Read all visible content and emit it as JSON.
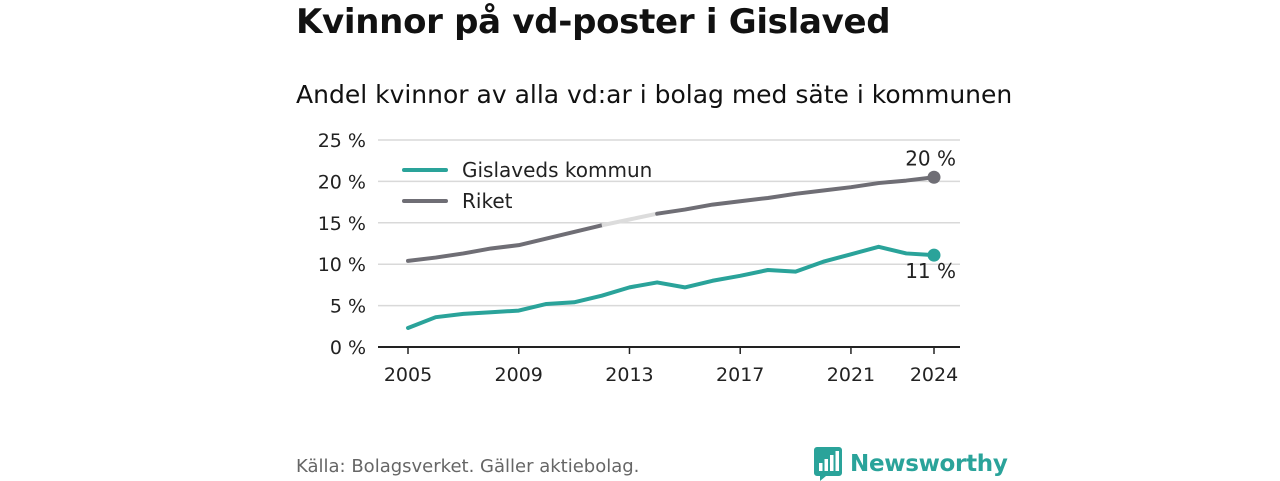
{
  "title": "Kvinnor på vd-poster i Gislaved",
  "subtitle": "Andel kvinnor av alla vd:ar i bolag med säte i kommunen",
  "source": "Källa: Bolagsverket. Gäller aktiebolag.",
  "brand": "Newsworthy",
  "colors": {
    "gislaved": "#2aa39a",
    "riket": "#6f6e75",
    "riket_highlight": "#dcdcdc",
    "grid": "#d9d9d9"
  },
  "chart_data": {
    "type": "line",
    "x": [
      2005,
      2006,
      2007,
      2008,
      2009,
      2010,
      2011,
      2012,
      2013,
      2014,
      2015,
      2016,
      2017,
      2018,
      2019,
      2020,
      2021,
      2022,
      2023,
      2024
    ],
    "series": [
      {
        "name": "Gislaveds kommun",
        "values": [
          2.3,
          3.6,
          4.0,
          4.2,
          4.4,
          5.2,
          5.4,
          6.2,
          7.2,
          7.8,
          7.2,
          8.0,
          8.6,
          9.3,
          9.1,
          10.3,
          11.2,
          12.1,
          11.3,
          11.1
        ]
      },
      {
        "name": "Riket",
        "values": [
          10.4,
          10.8,
          11.3,
          11.9,
          12.3,
          13.1,
          13.9,
          14.7,
          15.4,
          16.1,
          16.6,
          17.2,
          17.6,
          18.0,
          18.5,
          18.9,
          19.3,
          19.8,
          20.1,
          20.5
        ]
      }
    ],
    "end_labels": {
      "Gislaveds kommun": "11 %",
      "Riket": "20 %"
    },
    "y_ticks": [
      "0 %",
      "5 %",
      "10 %",
      "15 %",
      "20 %",
      "25 %"
    ],
    "y_tick_values": [
      0,
      5,
      10,
      15,
      20,
      25
    ],
    "x_ticks": [
      "2005",
      "2009",
      "2013",
      "2017",
      "2021",
      "2024"
    ],
    "x_tick_values": [
      2005,
      2009,
      2013,
      2017,
      2021,
      2024
    ],
    "highlight_range": [
      2012,
      2014
    ],
    "ylim": [
      0,
      25
    ],
    "xlim": [
      2005,
      2024
    ],
    "grid": true,
    "legend_position": "top-left"
  }
}
